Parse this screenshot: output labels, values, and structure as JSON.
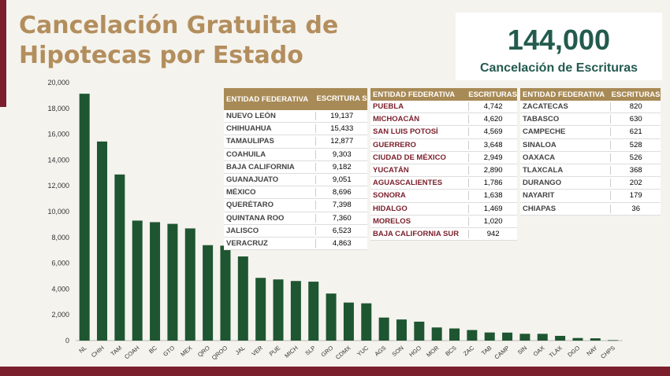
{
  "header": {
    "title_line1": "Cancelación Gratuita de",
    "title_line2": "Hipotecas por Estado"
  },
  "summary": {
    "value": "144,000",
    "label": "Cancelación de Escrituras"
  },
  "colors": {
    "bar": "#1e5631",
    "accent": "#b38e5d",
    "maroon": "#7a1f2b",
    "header_bg": "#a88a56"
  },
  "tables": [
    {
      "header_entity": "ENTIDAD FEDERATIVA",
      "header_value": "ESCRITURA S",
      "rows": [
        [
          "NUEVO LEÓN",
          "19,137"
        ],
        [
          "CHIHUAHUA",
          "15,433"
        ],
        [
          "TAMAULIPAS",
          "12,877"
        ],
        [
          "COAHUILA",
          "9,303"
        ],
        [
          "BAJA CALIFORNIA",
          "9,182"
        ],
        [
          "GUANAJUATO",
          "9,051"
        ],
        [
          "MÉXICO",
          "8,696"
        ],
        [
          "QUERÉTARO",
          "7,398"
        ],
        [
          "QUINTANA ROO",
          "7,360"
        ],
        [
          "JALISCO",
          "6,523"
        ],
        [
          "VERACRUZ",
          "4,863"
        ]
      ]
    },
    {
      "header_entity": "ENTIDAD FEDERATIVA",
      "header_value": "ESCRITURAS",
      "rows": [
        [
          "PUEBLA",
          "4,742"
        ],
        [
          "MICHOACÁN",
          "4,620"
        ],
        [
          "SAN LUIS POTOSÍ",
          "4,569"
        ],
        [
          "GUERRERO",
          "3,648"
        ],
        [
          "CIUDAD DE MÉXICO",
          "2,949"
        ],
        [
          "YUCATÁN",
          "2,890"
        ],
        [
          "AGUASCALIENTES",
          "1,786"
        ],
        [
          "SONORA",
          "1,638"
        ],
        [
          "HIDALGO",
          "1,469"
        ],
        [
          "MORELOS",
          "1,020"
        ],
        [
          "BAJA CALIFORNIA SUR",
          "942"
        ]
      ]
    },
    {
      "header_entity": "ENTIDAD FEDERATIVA",
      "header_value": "ESCRITURAS",
      "rows": [
        [
          "ZACATECAS",
          "820"
        ],
        [
          "TABASCO",
          "630"
        ],
        [
          "CAMPECHE",
          "621"
        ],
        [
          "SINALOA",
          "528"
        ],
        [
          "OAXACA",
          "526"
        ],
        [
          "TLAXCALA",
          "368"
        ],
        [
          "DURANGO",
          "202"
        ],
        [
          "NAYARIT",
          "179"
        ],
        [
          "CHIAPAS",
          "36"
        ]
      ]
    }
  ],
  "chart_data": {
    "type": "bar",
    "title": "",
    "xlabel": "",
    "ylabel": "",
    "ylim": [
      0,
      20000
    ],
    "yticks": [
      0,
      2000,
      4000,
      6000,
      8000,
      10000,
      12000,
      14000,
      16000,
      18000,
      20000
    ],
    "ytick_labels": [
      "0",
      "2,000",
      "4,000",
      "6,000",
      "8,000",
      "10,000",
      "12,000",
      "14,000",
      "16,000",
      "18,000",
      "20,000"
    ],
    "grid": false,
    "categories": [
      "NL",
      "CHIH",
      "TAM",
      "COAH",
      "BC",
      "GTO",
      "MEX",
      "QRO",
      "QROO",
      "JAL",
      "VER",
      "PUE",
      "MICH",
      "SLP",
      "GRO",
      "CDMX",
      "YUC",
      "AGS",
      "SON",
      "HGO",
      "MOR",
      "BCS",
      "ZAC",
      "TAB",
      "CAMP",
      "SIN",
      "OAX",
      "TLAX",
      "DGO",
      "NAY",
      "CHPS"
    ],
    "values": [
      19137,
      15433,
      12877,
      9303,
      9182,
      9051,
      8696,
      7398,
      7360,
      6523,
      4863,
      4742,
      4620,
      4569,
      3648,
      2949,
      2890,
      1786,
      1638,
      1469,
      1020,
      942,
      820,
      630,
      621,
      528,
      526,
      368,
      202,
      179,
      36
    ]
  }
}
